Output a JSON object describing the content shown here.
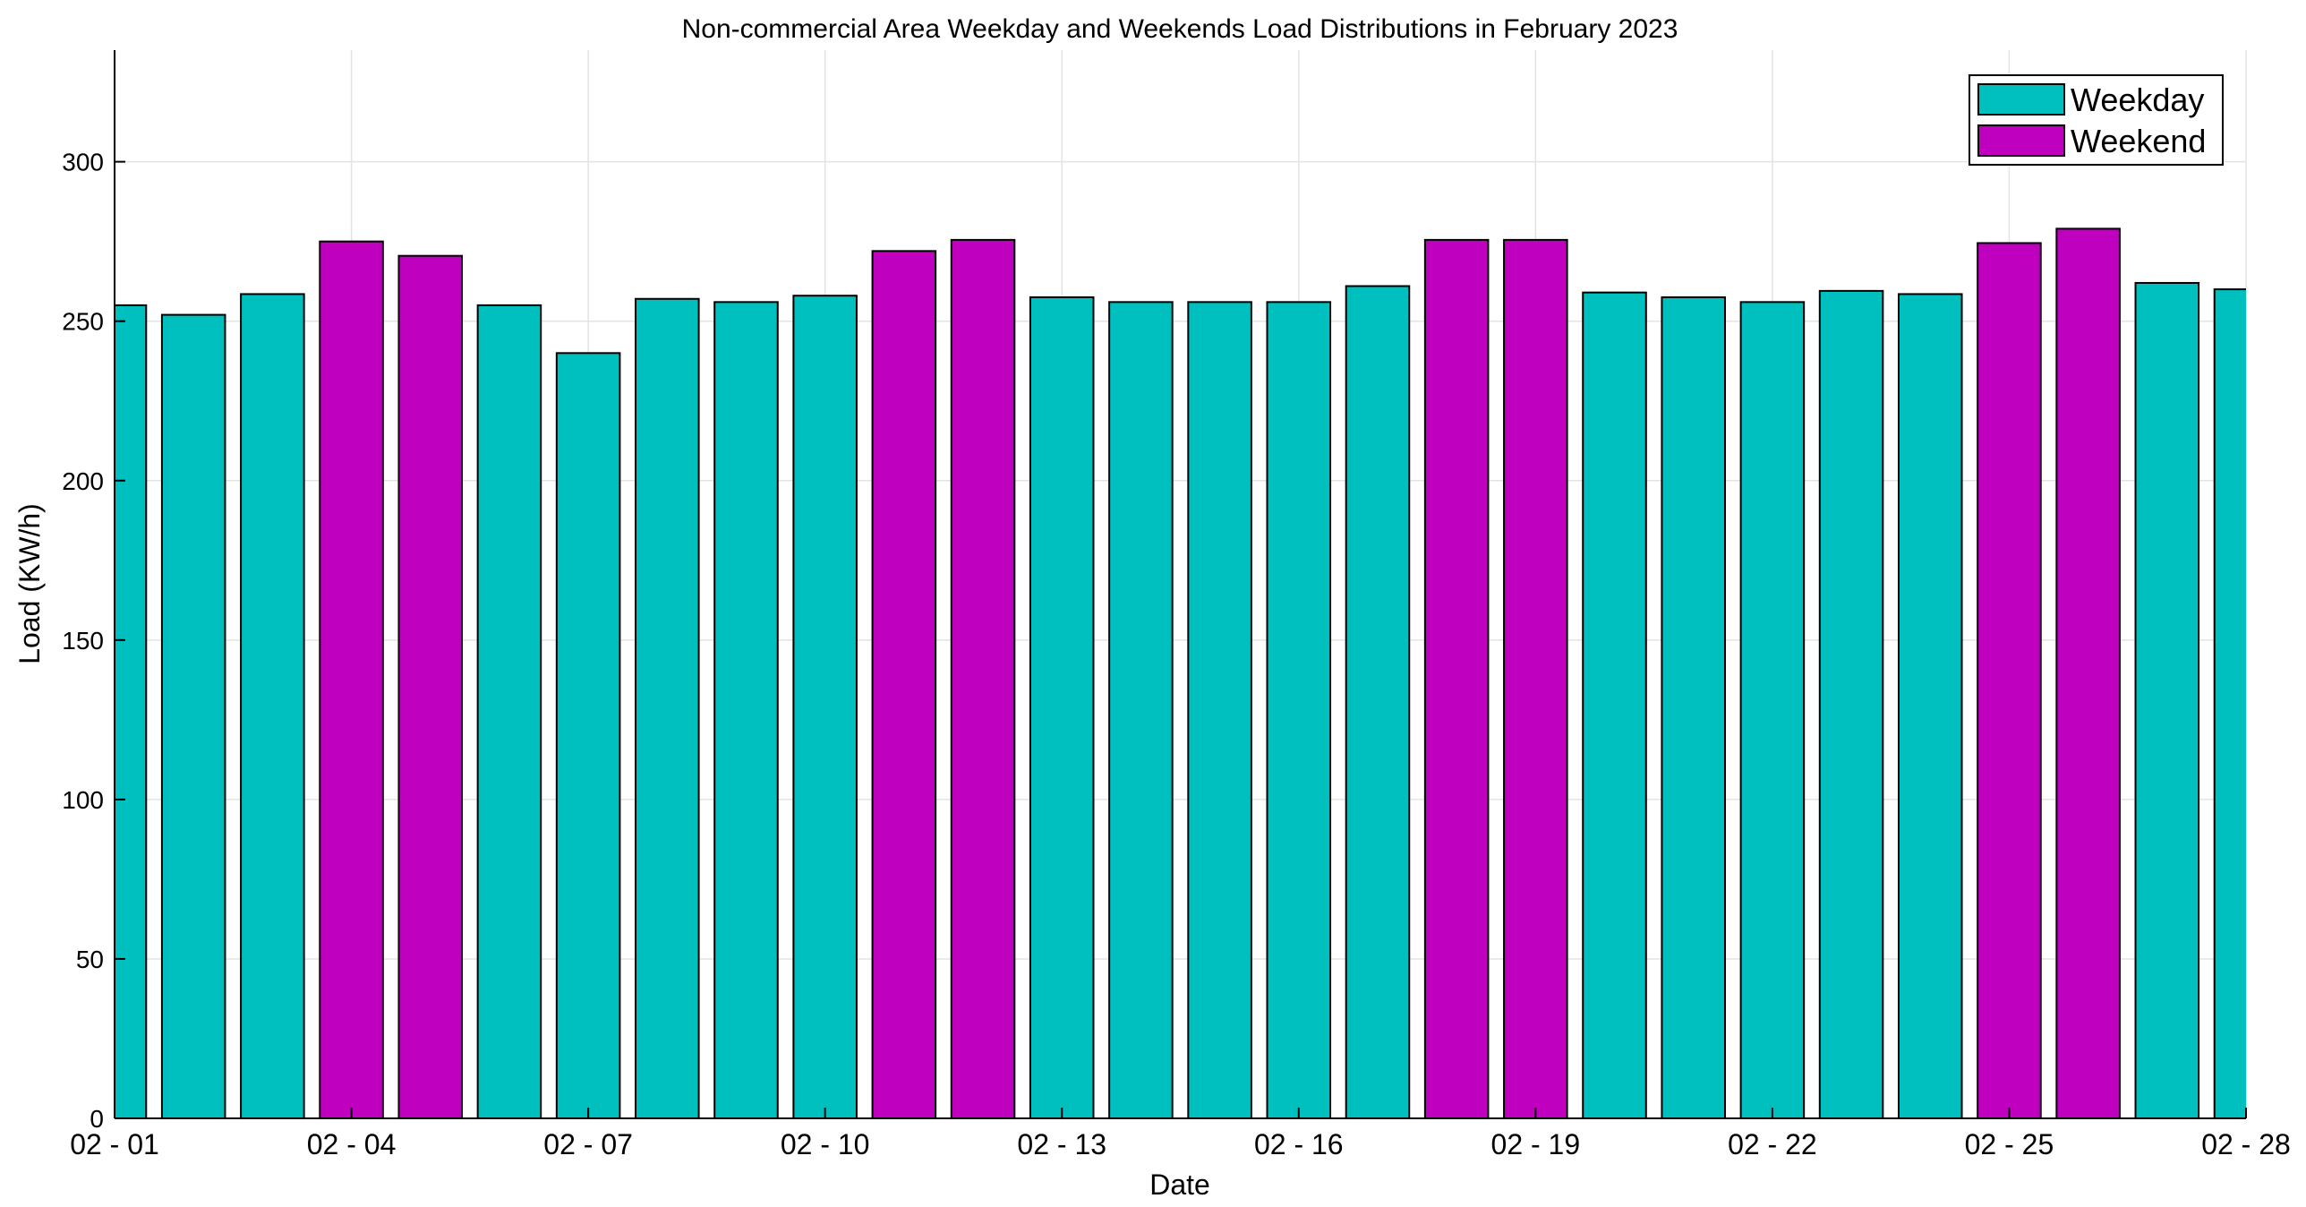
{
  "chart_data": {
    "type": "bar",
    "title": "Non-commercial Area Weekday and Weekends Load Distributions in February 2023",
    "xlabel": "Date",
    "ylabel": "Load (KW/h)",
    "ylim": [
      0,
      335
    ],
    "yticks": [
      0,
      50,
      100,
      150,
      200,
      250,
      300
    ],
    "grid": true,
    "legend_position": "top-right",
    "xtick_labels": [
      "02 - 01",
      "02 - 04",
      "02 - 07",
      "02 - 10",
      "02 - 13",
      "02 - 16",
      "02 - 19",
      "02 - 22",
      "02 - 25",
      "02 - 28"
    ],
    "categories": [
      "02-01",
      "02-02",
      "02-03",
      "02-04",
      "02-05",
      "02-06",
      "02-07",
      "02-08",
      "02-09",
      "02-10",
      "02-11",
      "02-12",
      "02-13",
      "02-14",
      "02-15",
      "02-16",
      "02-17",
      "02-18",
      "02-19",
      "02-20",
      "02-21",
      "02-22",
      "02-23",
      "02-24",
      "02-25",
      "02-26",
      "02-27",
      "02-28"
    ],
    "values": [
      255,
      252,
      258.5,
      275,
      270.5,
      255,
      240,
      257,
      256,
      258,
      272,
      275.5,
      257.5,
      256,
      256,
      256,
      261,
      275.5,
      275.5,
      259,
      257.5,
      256,
      259.5,
      258.5,
      274.5,
      279,
      262,
      260
    ],
    "day_type": [
      "Weekday",
      "Weekday",
      "Weekday",
      "Weekend",
      "Weekend",
      "Weekday",
      "Weekday",
      "Weekday",
      "Weekday",
      "Weekday",
      "Weekend",
      "Weekend",
      "Weekday",
      "Weekday",
      "Weekday",
      "Weekday",
      "Weekday",
      "Weekend",
      "Weekend",
      "Weekday",
      "Weekday",
      "Weekday",
      "Weekday",
      "Weekday",
      "Weekend",
      "Weekend",
      "Weekday",
      "Weekday"
    ],
    "legend": [
      {
        "name": "Weekday",
        "color": "#00BFBF"
      },
      {
        "name": "Weekend",
        "color": "#BF00BF"
      }
    ]
  }
}
